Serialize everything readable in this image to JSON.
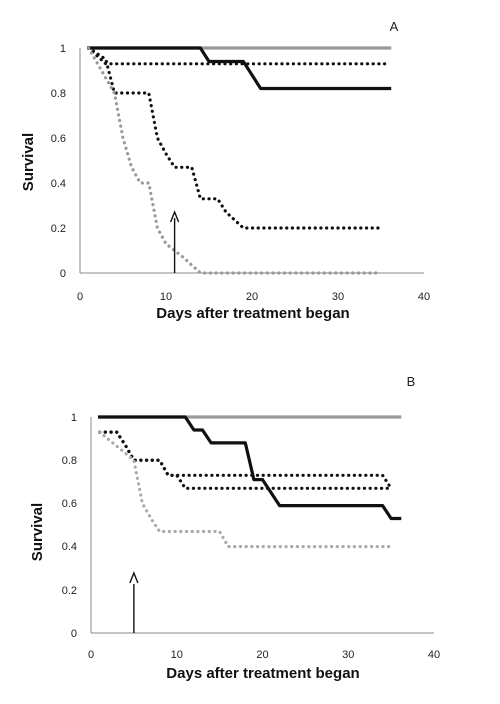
{
  "chart_data": [
    {
      "type": "line",
      "panel_label": "A",
      "xlabel": "Days after treatment began",
      "ylabel": "Survival",
      "xlim": [
        0,
        40
      ],
      "ylim": [
        0,
        1
      ],
      "x_ticks": [
        "0",
        "10",
        "20",
        "30",
        "40"
      ],
      "y_ticks": [
        "0",
        "0.2",
        "0.4",
        "0.6",
        "0.8",
        "1"
      ],
      "legend": "none",
      "grid": false,
      "arrow_at_day": 11,
      "series": [
        {
          "style": "solid",
          "color": "#999999",
          "points": [
            [
              1,
              1
            ],
            [
              36,
              1
            ]
          ]
        },
        {
          "style": "solid",
          "color": "#111111",
          "points": [
            [
              1,
              1
            ],
            [
              14,
              1
            ],
            [
              15,
              0.94
            ],
            [
              19,
              0.94
            ],
            [
              21,
              0.82
            ],
            [
              36,
              0.82
            ]
          ]
        },
        {
          "style": "dotted",
          "color": "#111111",
          "points": [
            [
              1,
              1
            ],
            [
              3,
              0.93
            ],
            [
              36,
              0.93
            ]
          ]
        },
        {
          "style": "dotted",
          "color": "#111111",
          "points": [
            [
              1,
              1
            ],
            [
              3,
              0.95
            ],
            [
              4,
              0.8
            ],
            [
              8,
              0.8
            ],
            [
              9,
              0.6
            ],
            [
              10,
              0.53
            ],
            [
              11,
              0.47
            ],
            [
              13,
              0.47
            ],
            [
              14,
              0.33
            ],
            [
              16,
              0.33
            ],
            [
              17,
              0.27
            ],
            [
              19,
              0.2
            ],
            [
              35,
              0.2
            ]
          ]
        },
        {
          "style": "dotted",
          "color": "#999999",
          "points": [
            [
              1,
              1
            ],
            [
              4,
              0.8
            ],
            [
              5,
              0.6
            ],
            [
              6,
              0.47
            ],
            [
              7,
              0.4
            ],
            [
              8,
              0.4
            ],
            [
              9,
              0.2
            ],
            [
              10,
              0.13
            ],
            [
              12,
              0.07
            ],
            [
              14,
              0
            ],
            [
              35,
              0
            ]
          ]
        }
      ]
    },
    {
      "type": "line",
      "panel_label": "B",
      "xlabel": "Days after treatment began",
      "ylabel": "Survival",
      "xlim": [
        0,
        40
      ],
      "ylim": [
        0,
        1
      ],
      "x_ticks": [
        "0",
        "10",
        "20",
        "30",
        "40"
      ],
      "y_ticks": [
        "0",
        "0.2",
        "0.4",
        "0.6",
        "0.8",
        "1"
      ],
      "legend": "none",
      "grid": false,
      "arrow_at_day": 5,
      "series": [
        {
          "style": "solid",
          "color": "#999999",
          "points": [
            [
              1,
              1
            ],
            [
              36,
              1
            ]
          ]
        },
        {
          "style": "solid",
          "color": "#111111",
          "points": [
            [
              1,
              1
            ],
            [
              11,
              1
            ],
            [
              12,
              0.94
            ],
            [
              13,
              0.94
            ],
            [
              14,
              0.88
            ],
            [
              18,
              0.88
            ],
            [
              19,
              0.71
            ],
            [
              20,
              0.71
            ],
            [
              22,
              0.59
            ],
            [
              34,
              0.59
            ],
            [
              35,
              0.53
            ],
            [
              36,
              0.53
            ]
          ]
        },
        {
          "style": "dotted",
          "color": "#111111",
          "points": [
            [
              1,
              0.93
            ],
            [
              3,
              0.93
            ],
            [
              4,
              0.87
            ],
            [
              5,
              0.8
            ],
            [
              8,
              0.8
            ],
            [
              9,
              0.73
            ],
            [
              34,
              0.73
            ],
            [
              35,
              0.67
            ]
          ]
        },
        {
          "style": "dotted",
          "color": "#111111",
          "points": [
            [
              1,
              0.93
            ],
            [
              3,
              0.93
            ],
            [
              4,
              0.87
            ],
            [
              5,
              0.8
            ],
            [
              8,
              0.8
            ],
            [
              9,
              0.73
            ],
            [
              10,
              0.73
            ],
            [
              11,
              0.67
            ],
            [
              35,
              0.67
            ]
          ]
        },
        {
          "style": "dotted",
          "color": "#aaaaaa",
          "points": [
            [
              1,
              0.93
            ],
            [
              5,
              0.8
            ],
            [
              6,
              0.6
            ],
            [
              7,
              0.53
            ],
            [
              8,
              0.47
            ],
            [
              15,
              0.47
            ],
            [
              16,
              0.4
            ],
            [
              35,
              0.4
            ]
          ]
        }
      ]
    }
  ]
}
